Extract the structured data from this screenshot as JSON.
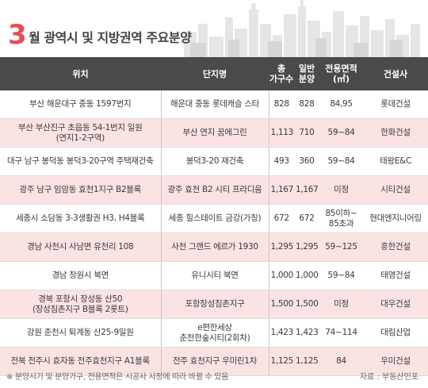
{
  "title": {
    "num": "3",
    "rest": "월 광역시 및 지방권역 주요분양"
  },
  "headers": {
    "location": "위치",
    "complex": "단지명",
    "total_line1": "총",
    "total_line2": "가구수",
    "sale_line1": "일반",
    "sale_line2": "분양",
    "area_line1": "전용면적",
    "area_line2": "(㎡)",
    "builder": "건설사"
  },
  "rows": [
    {
      "location_l1": "부산 해운대구 중동 1597번지",
      "location_l2": "",
      "complex_l1": "해운대 중동 롯데캐슬 스타",
      "complex_l2": "",
      "total": "828",
      "sale": "828",
      "area_l1": "84,95",
      "area_l2": "",
      "builder": "롯데건설"
    },
    {
      "location_l1": "부산 부산진구 초읍동 54-1번지 일원",
      "location_l2": "(연지1-2구역)",
      "complex_l1": "부산 연지 꿈에그린",
      "complex_l2": "",
      "total": "1,113",
      "sale": "710",
      "area_l1": "59~84",
      "area_l2": "",
      "builder": "한화건설"
    },
    {
      "location_l1": "대구 남구 봉덕동 봉덕3-20구역 주택재건축",
      "location_l2": "",
      "complex_l1": "봉덕3-20 재건축",
      "complex_l2": "",
      "total": "493",
      "sale": "360",
      "area_l1": "59~84",
      "area_l2": "",
      "builder": "태왕E&C"
    },
    {
      "location_l1": "광주 남구 임암동 효천1지구 B2블록",
      "location_l2": "",
      "complex_l1": "광주 효천 B2 시티 프라디움",
      "complex_l2": "",
      "total": "1,167",
      "sale": "1,167",
      "area_l1": "미정",
      "area_l2": "",
      "builder": "시티건설"
    },
    {
      "location_l1": "세종시 소담동 3-3생활권 H3, H4블록",
      "location_l2": "",
      "complex_l1": "세종 힐스테이트 금강(가칭)",
      "complex_l2": "",
      "total": "672",
      "sale": "672",
      "area_l1": "85이하~",
      "area_l2": "85초과",
      "builder": "현대엔지니어링"
    },
    {
      "location_l1": "경남 사천시 사남면 유천리 108",
      "location_l2": "",
      "complex_l1": "사천 그랜드 에르가 1930",
      "complex_l2": "",
      "total": "1,295",
      "sale": "1,295",
      "area_l1": "59~125",
      "area_l2": "",
      "builder": "흥한건설"
    },
    {
      "location_l1": "경남 창원시 북면",
      "location_l2": "",
      "complex_l1": "유니시티 북면",
      "complex_l2": "",
      "total": "1,000",
      "sale": "1,000",
      "area_l1": "59~84",
      "area_l2": "",
      "builder": "태영건설"
    },
    {
      "location_l1": "경북 포항시 장성동 산50",
      "location_l2": "(장성침촌지구 B블록 2롯트)",
      "complex_l1": "포항장성침촌지구",
      "complex_l2": "",
      "total": "1,500",
      "sale": "1,500",
      "area_l1": "미정",
      "area_l2": "",
      "builder": "대우건설"
    },
    {
      "location_l1": "강원 춘천시 퇴계동 산25-9일원",
      "location_l2": "",
      "complex_l1": "e편한세상",
      "complex_l2": "춘천한숲시티(2회차)",
      "total": "1,423",
      "sale": "1,423",
      "area_l1": "74~114",
      "area_l2": "",
      "builder": "대림산업"
    },
    {
      "location_l1": "전북 전주시 효자동 전주효천지구 A1블록",
      "location_l2": "",
      "complex_l1": "전주 효천지구 우미린1차",
      "complex_l2": "",
      "total": "1,125",
      "sale": "1,125",
      "area_l1": "84",
      "area_l2": "",
      "builder": "우미건설"
    }
  ],
  "footnote": "※ 분양시기 및 분양가구, 전용면적은 시공사 사정에 따라 바뀔 수 있음",
  "source": "자료 : 부동산인포",
  "colors": {
    "accent": "#e94b52",
    "header_bg": "#4a4a4a",
    "pink_row": "#fbe3e4"
  }
}
